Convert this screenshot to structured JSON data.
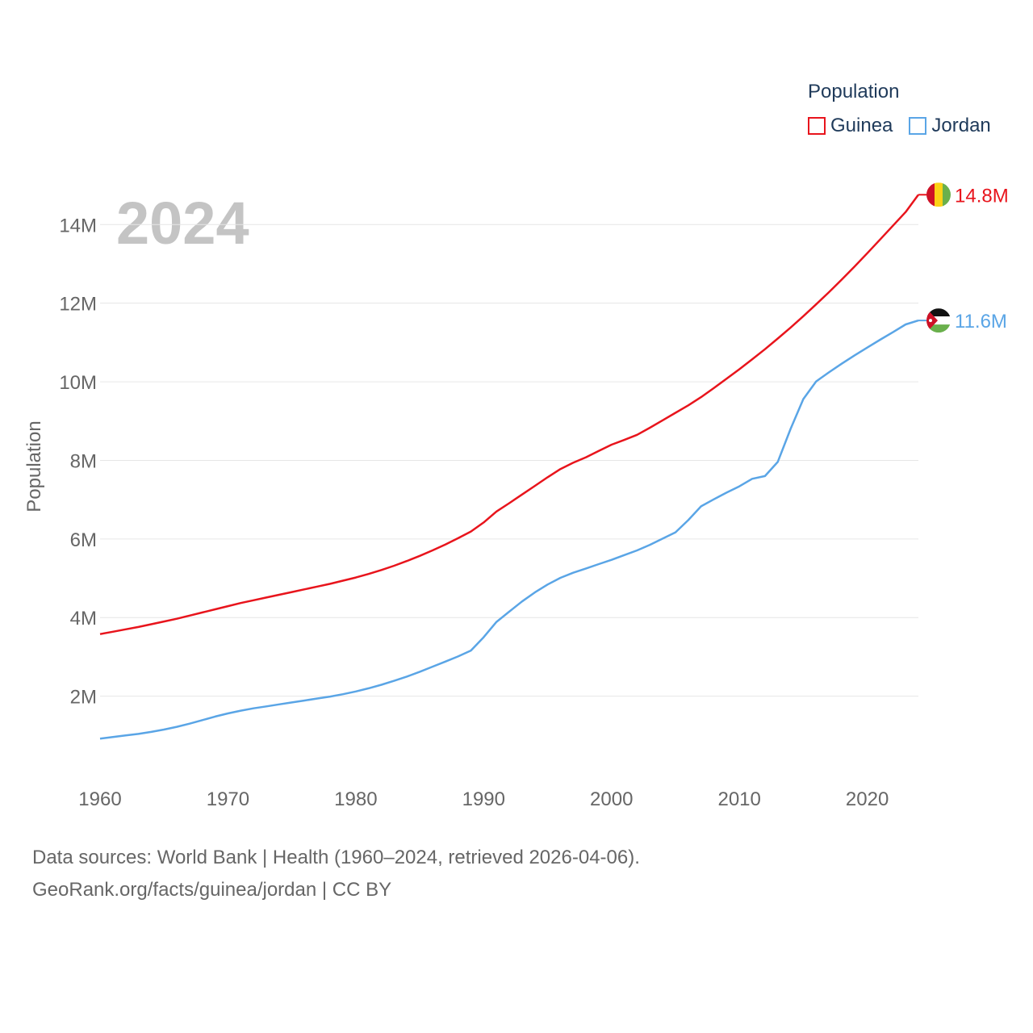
{
  "chart_data": {
    "type": "line",
    "year_label": "2024",
    "ylabel": "Population",
    "xlim": [
      1960,
      2024
    ],
    "ylim": [
      0,
      15300000
    ],
    "x_ticks": [
      1960,
      1970,
      1980,
      1990,
      2000,
      2010,
      2020
    ],
    "x_tick_labels": [
      "1960",
      "1970",
      "1980",
      "1990",
      "2000",
      "2010",
      "2020"
    ],
    "y_ticks": [
      2000000,
      4000000,
      6000000,
      8000000,
      10000000,
      12000000,
      14000000
    ],
    "y_tick_labels": [
      "2M",
      "4M",
      "6M",
      "8M",
      "10M",
      "12M",
      "14M"
    ],
    "legend": {
      "title": "Population",
      "position": "top-right"
    },
    "years": [
      1960,
      1961,
      1962,
      1963,
      1964,
      1965,
      1966,
      1967,
      1968,
      1969,
      1970,
      1971,
      1972,
      1973,
      1974,
      1975,
      1976,
      1977,
      1978,
      1979,
      1980,
      1981,
      1982,
      1983,
      1984,
      1985,
      1986,
      1987,
      1988,
      1989,
      1990,
      1991,
      1992,
      1993,
      1994,
      1995,
      1996,
      1997,
      1998,
      1999,
      2000,
      2001,
      2002,
      2003,
      2004,
      2005,
      2006,
      2007,
      2008,
      2009,
      2010,
      2011,
      2012,
      2013,
      2014,
      2015,
      2016,
      2017,
      2018,
      2019,
      2020,
      2021,
      2022,
      2023,
      2024
    ],
    "series": [
      {
        "name": "Guinea",
        "color": "#e8141c",
        "end_label": "14.8M",
        "flag": "guinea-flag",
        "values": [
          3580000,
          3640000,
          3700000,
          3760000,
          3830000,
          3900000,
          3970000,
          4050000,
          4130000,
          4210000,
          4290000,
          4370000,
          4440000,
          4510000,
          4580000,
          4650000,
          4720000,
          4790000,
          4860000,
          4940000,
          5020000,
          5110000,
          5210000,
          5320000,
          5440000,
          5570000,
          5710000,
          5860000,
          6020000,
          6190000,
          6420000,
          6700000,
          6910000,
          7130000,
          7350000,
          7570000,
          7780000,
          7940000,
          8080000,
          8240000,
          8400000,
          8520000,
          8650000,
          8830000,
          9020000,
          9210000,
          9400000,
          9610000,
          9840000,
          10080000,
          10320000,
          10570000,
          10830000,
          11100000,
          11380000,
          11670000,
          11970000,
          12280000,
          12600000,
          12930000,
          13270000,
          13620000,
          13970000,
          14320000,
          14760000
        ]
      },
      {
        "name": "Jordan",
        "color": "#5aa5e6",
        "end_label": "11.6M",
        "flag": "jordan-flag",
        "values": [
          920000,
          960000,
          1000000,
          1040000,
          1090000,
          1150000,
          1220000,
          1300000,
          1390000,
          1480000,
          1560000,
          1630000,
          1690000,
          1740000,
          1790000,
          1840000,
          1890000,
          1940000,
          1990000,
          2050000,
          2120000,
          2200000,
          2290000,
          2390000,
          2500000,
          2620000,
          2750000,
          2880000,
          3010000,
          3160000,
          3500000,
          3890000,
          4150000,
          4410000,
          4640000,
          4840000,
          5010000,
          5140000,
          5250000,
          5360000,
          5470000,
          5590000,
          5710000,
          5850000,
          6010000,
          6170000,
          6480000,
          6830000,
          7010000,
          7180000,
          7340000,
          7530000,
          7600000,
          7960000,
          8800000,
          9560000,
          10010000,
          10240000,
          10460000,
          10670000,
          10870000,
          11070000,
          11260000,
          11460000,
          11560000
        ]
      }
    ]
  },
  "source": {
    "line1": "Data sources: World Bank | Health (1960–2024, retrieved 2026-04-06).",
    "line2": "GeoRank.org/facts/guinea/jordan | CC BY"
  }
}
